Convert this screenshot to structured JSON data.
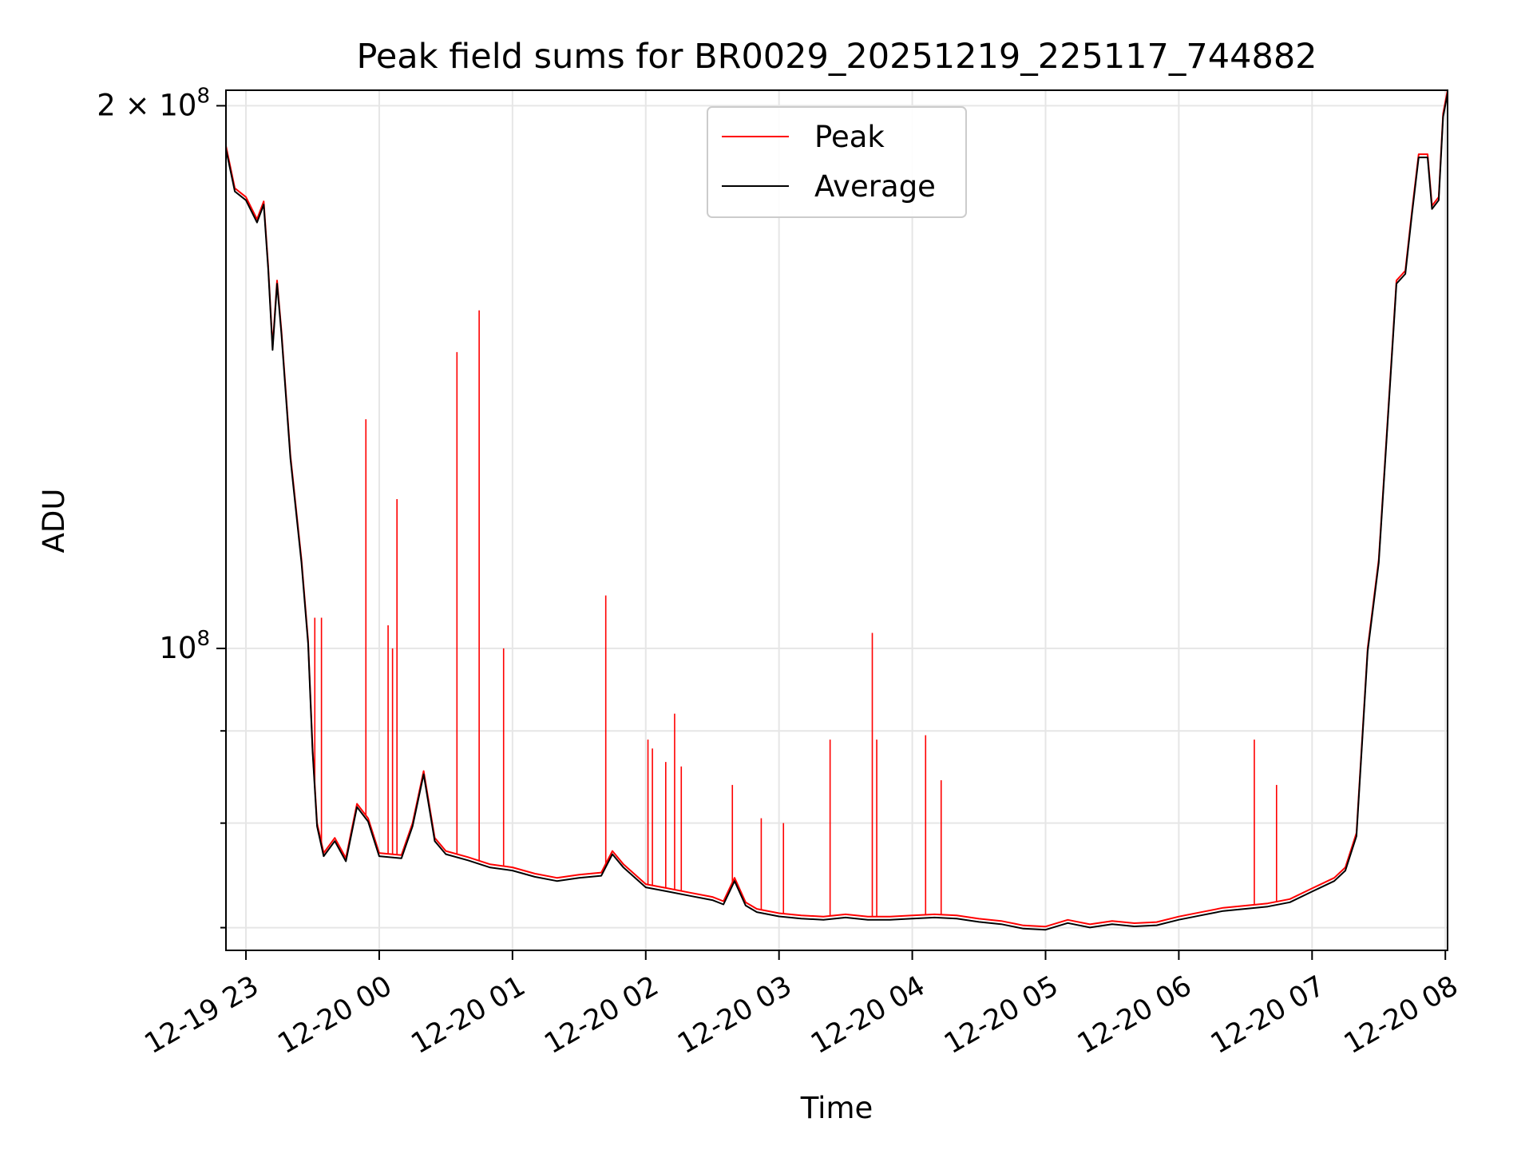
{
  "chart_data": {
    "type": "line",
    "title": "Peak field sums for BR0029_20251219_225117_744882",
    "xlabel": "Time",
    "ylabel": "ADU",
    "yscale": "log",
    "xlim": [
      "2025-12-19 22:51",
      "2025-12-20 08:01"
    ],
    "ylim": [
      68000000,
      204000000
    ],
    "grid": true,
    "legend_position": "top-center",
    "x_ticks": [
      "12-19 23",
      "12-20 00",
      "12-20 01",
      "12-20 02",
      "12-20 03",
      "12-20 04",
      "12-20 05",
      "12-20 06",
      "12-20 07",
      "12-20 08"
    ],
    "x_tick_times": [
      "2025-12-19 23:00",
      "2025-12-20 00:00",
      "2025-12-20 01:00",
      "2025-12-20 02:00",
      "2025-12-20 03:00",
      "2025-12-20 04:00",
      "2025-12-20 05:00",
      "2025-12-20 06:00",
      "2025-12-20 07:00",
      "2025-12-20 08:00"
    ],
    "y_tick_labels": [
      {
        "value": 200000000,
        "mantissa": "2",
        "exponent": "8"
      },
      {
        "value": 100000000,
        "mantissa": "",
        "exponent": "8"
      }
    ],
    "y_minor_ticks": [
      70000000,
      80000000,
      90000000
    ],
    "series": [
      {
        "name": "Peak",
        "color": "#ff0000",
        "points": [
          [
            "2025-12-19 22:51",
            190000000
          ],
          [
            "2025-12-19 22:55",
            180000000
          ],
          [
            "2025-12-19 23:00",
            178000000
          ],
          [
            "2025-12-19 23:05",
            173000000
          ],
          [
            "2025-12-19 23:08",
            177000000
          ],
          [
            "2025-12-19 23:10",
            163000000
          ],
          [
            "2025-12-19 23:12",
            147000000
          ],
          [
            "2025-12-19 23:14",
            160000000
          ],
          [
            "2025-12-19 23:16",
            150000000
          ],
          [
            "2025-12-19 23:20",
            128000000
          ],
          [
            "2025-12-19 23:25",
            112000000
          ],
          [
            "2025-12-19 23:28",
            101000000
          ],
          [
            "2025-12-19 23:30",
            88000000
          ],
          [
            "2025-12-19 23:32",
            80000000
          ],
          [
            "2025-12-19 23:35",
            77000000
          ],
          [
            "2025-12-19 23:40",
            78500000
          ],
          [
            "2025-12-19 23:45",
            76500000
          ],
          [
            "2025-12-19 23:50",
            82000000
          ],
          [
            "2025-12-19 23:55",
            80500000
          ],
          [
            "2025-12-20 00:00",
            77000000
          ],
          [
            "2025-12-20 00:10",
            76800000
          ],
          [
            "2025-12-20 00:15",
            80000000
          ],
          [
            "2025-12-20 00:20",
            85500000
          ],
          [
            "2025-12-20 00:25",
            78500000
          ],
          [
            "2025-12-20 00:30",
            77200000
          ],
          [
            "2025-12-20 00:40",
            76600000
          ],
          [
            "2025-12-20 00:50",
            75900000
          ],
          [
            "2025-12-20 01:00",
            75600000
          ],
          [
            "2025-12-20 01:10",
            75000000
          ],
          [
            "2025-12-20 01:20",
            74600000
          ],
          [
            "2025-12-20 01:30",
            74900000
          ],
          [
            "2025-12-20 01:40",
            75100000
          ],
          [
            "2025-12-20 01:45",
            77200000
          ],
          [
            "2025-12-20 01:50",
            75900000
          ],
          [
            "2025-12-20 02:00",
            74000000
          ],
          [
            "2025-12-20 02:10",
            73600000
          ],
          [
            "2025-12-20 02:20",
            73200000
          ],
          [
            "2025-12-20 02:30",
            72800000
          ],
          [
            "2025-12-20 02:35",
            72400000
          ],
          [
            "2025-12-20 02:40",
            74600000
          ],
          [
            "2025-12-20 02:45",
            72300000
          ],
          [
            "2025-12-20 02:50",
            71700000
          ],
          [
            "2025-12-20 03:00",
            71300000
          ],
          [
            "2025-12-20 03:10",
            71100000
          ],
          [
            "2025-12-20 03:20",
            71000000
          ],
          [
            "2025-12-20 03:30",
            71200000
          ],
          [
            "2025-12-20 03:40",
            71000000
          ],
          [
            "2025-12-20 03:50",
            71000000
          ],
          [
            "2025-12-20 04:00",
            71100000
          ],
          [
            "2025-12-20 04:10",
            71200000
          ],
          [
            "2025-12-20 04:20",
            71100000
          ],
          [
            "2025-12-20 04:30",
            70800000
          ],
          [
            "2025-12-20 04:40",
            70600000
          ],
          [
            "2025-12-20 04:50",
            70200000
          ],
          [
            "2025-12-20 05:00",
            70100000
          ],
          [
            "2025-12-20 05:10",
            70700000
          ],
          [
            "2025-12-20 05:20",
            70300000
          ],
          [
            "2025-12-20 05:30",
            70600000
          ],
          [
            "2025-12-20 05:40",
            70400000
          ],
          [
            "2025-12-20 05:50",
            70500000
          ],
          [
            "2025-12-20 06:00",
            71000000
          ],
          [
            "2025-12-20 06:10",
            71400000
          ],
          [
            "2025-12-20 06:20",
            71800000
          ],
          [
            "2025-12-20 06:30",
            72000000
          ],
          [
            "2025-12-20 06:40",
            72200000
          ],
          [
            "2025-12-20 06:50",
            72600000
          ],
          [
            "2025-12-20 07:00",
            73600000
          ],
          [
            "2025-12-20 07:10",
            74600000
          ],
          [
            "2025-12-20 07:15",
            75600000
          ],
          [
            "2025-12-20 07:20",
            79000000
          ],
          [
            "2025-12-20 07:25",
            100000000
          ],
          [
            "2025-12-20 07:30",
            112000000
          ],
          [
            "2025-12-20 07:35",
            140000000
          ],
          [
            "2025-12-20 07:38",
            160000000
          ],
          [
            "2025-12-20 07:42",
            162000000
          ],
          [
            "2025-12-20 07:45",
            175000000
          ],
          [
            "2025-12-20 07:48",
            188000000
          ],
          [
            "2025-12-20 07:52",
            188000000
          ],
          [
            "2025-12-20 07:54",
            176000000
          ],
          [
            "2025-12-20 07:57",
            178000000
          ],
          [
            "2025-12-20 07:59",
            198000000
          ],
          [
            "2025-12-20 08:01",
            204000000
          ]
        ],
        "spikes": [
          [
            "2025-12-19 23:31",
            104000000
          ],
          [
            "2025-12-19 23:34",
            104000000
          ],
          [
            "2025-12-19 23:54",
            134000000
          ],
          [
            "2025-12-20 00:04",
            103000000
          ],
          [
            "2025-12-20 00:06",
            100000000
          ],
          [
            "2025-12-20 00:08",
            121000000
          ],
          [
            "2025-12-20 00:35",
            146000000
          ],
          [
            "2025-12-20 00:45",
            154000000
          ],
          [
            "2025-12-20 00:56",
            100000000
          ],
          [
            "2025-12-20 01:42",
            107000000
          ],
          [
            "2025-12-20 02:01",
            89000000
          ],
          [
            "2025-12-20 02:03",
            88000000
          ],
          [
            "2025-12-20 02:09",
            86500000
          ],
          [
            "2025-12-20 02:13",
            92000000
          ],
          [
            "2025-12-20 02:16",
            86000000
          ],
          [
            "2025-12-20 02:39",
            84000000
          ],
          [
            "2025-12-20 02:52",
            80500000
          ],
          [
            "2025-12-20 03:02",
            80000000
          ],
          [
            "2025-12-20 03:23",
            89000000
          ],
          [
            "2025-12-20 03:42",
            102000000
          ],
          [
            "2025-12-20 03:44",
            89000000
          ],
          [
            "2025-12-20 04:06",
            89500000
          ],
          [
            "2025-12-20 04:13",
            84500000
          ],
          [
            "2025-12-20 06:34",
            89000000
          ],
          [
            "2025-12-20 06:44",
            84000000
          ]
        ]
      },
      {
        "name": "Average",
        "color": "#000000"
      }
    ]
  }
}
